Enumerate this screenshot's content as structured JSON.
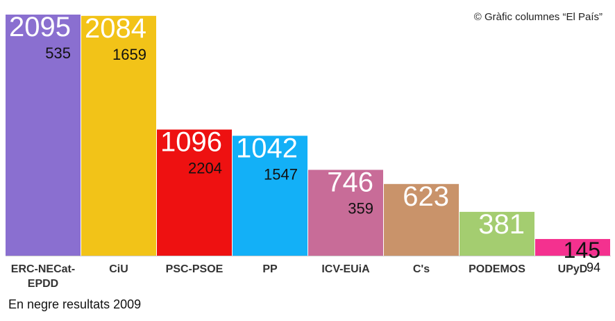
{
  "credit": "© Gràfic columnes “El País”",
  "footnote": "En negre resultats 2009",
  "chart_data": {
    "type": "bar",
    "categories": [
      [
        "ERC-NECat-",
        "EPDD"
      ],
      [
        "CiU"
      ],
      [
        "PSC-PSOE"
      ],
      [
        "PP"
      ],
      [
        "ICV-EUiA"
      ],
      [
        "C's"
      ],
      [
        "PODEMOS"
      ],
      [
        "UPyD"
      ]
    ],
    "values": [
      2095,
      2084,
      1096,
      1042,
      746,
      623,
      381,
      145
    ],
    "values_2009": [
      535,
      1659,
      2204,
      1547,
      359,
      null,
      null,
      94
    ],
    "colors": [
      "#8a6fd0",
      "#f2c318",
      "#ee1111",
      "#13b0f7",
      "#c86c98",
      "#c9936a",
      "#a4cd70",
      "#f4318f"
    ],
    "ylim": [
      0,
      2095
    ],
    "grid": false,
    "legend": "none"
  }
}
